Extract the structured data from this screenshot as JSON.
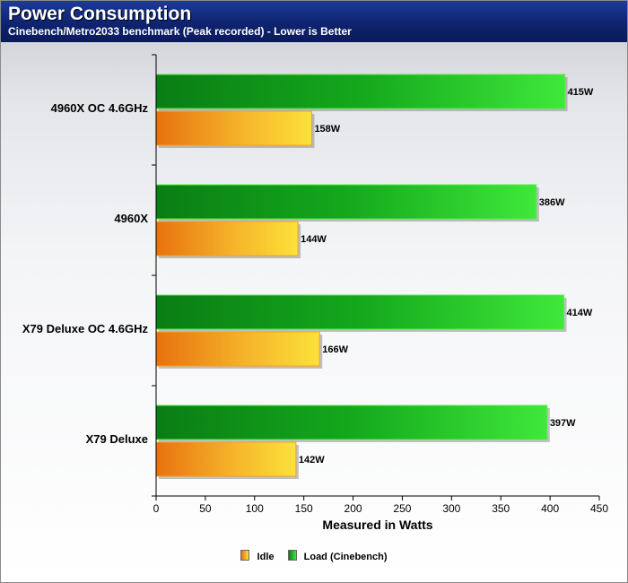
{
  "header": {
    "title": "Power Consumption",
    "subtitle": "Cinebench/Metro2033 benchmark (Peak recorded) - Lower is Better"
  },
  "colors": {
    "header_bg": "#0f2470",
    "load": "#1fc11f",
    "idle": "#f5b114"
  },
  "chart_data": {
    "type": "bar",
    "orientation": "horizontal",
    "categories": [
      "4960X OC 4.6GHz",
      "4960X",
      "X79 Deluxe OC 4.6GHz",
      "X79 Deluxe"
    ],
    "series": [
      {
        "name": "Load (Cinebench)",
        "values": [
          415,
          386,
          414,
          397
        ],
        "labels": [
          "415W",
          "386W",
          "414W",
          "397W"
        ]
      },
      {
        "name": "Idle",
        "values": [
          158,
          144,
          166,
          142
        ],
        "labels": [
          "158W",
          "144W",
          "166W",
          "142W"
        ]
      }
    ],
    "xlabel": "Measured in Watts",
    "xlim": [
      0,
      450
    ],
    "xticks": [
      0,
      50,
      100,
      150,
      200,
      250,
      300,
      350,
      400,
      450
    ],
    "grid": false,
    "legend": {
      "position": "bottom",
      "entries": [
        "Idle",
        "Load (Cinebench)"
      ]
    }
  }
}
